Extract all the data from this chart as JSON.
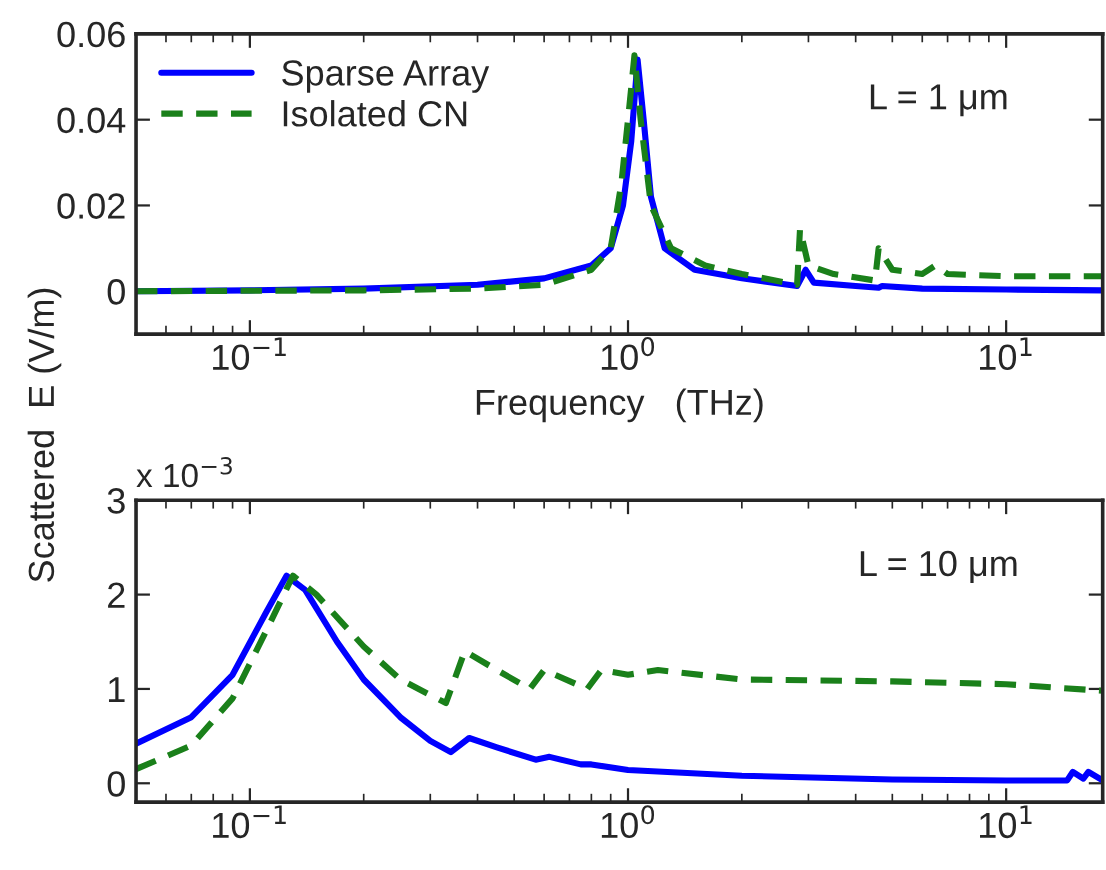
{
  "chart_data": [
    {
      "type": "line",
      "xlabel": "Frequency   (THz)",
      "ylabel": "Scattered  E (V/m)",
      "log": "x",
      "xlim": [
        0.05,
        18
      ],
      "ylim": [
        -0.01,
        0.06
      ],
      "yticks": [
        0,
        0.02,
        0.04,
        0.06
      ],
      "xticks": [
        {
          "value": 0.1,
          "label": "10$^{−1}$"
        },
        {
          "value": 1,
          "label": "10$^{0}$"
        },
        {
          "value": 10,
          "label": "10$^{1}$"
        }
      ],
      "legend": "top left",
      "grid": false,
      "annotations": [
        "L = 1 μm"
      ],
      "series": [
        {
          "name": "Sparse Array",
          "color": "#0000ff",
          "line_style": "solid",
          "x": [
            0.05,
            0.1,
            0.2,
            0.4,
            0.6,
            0.8,
            0.9,
            0.97,
            1.02,
            1.06,
            1.1,
            1.15,
            1.25,
            1.5,
            2,
            2.8,
            2.95,
            3.1,
            4,
            4.6,
            4.7,
            6,
            10,
            18
          ],
          "values": [
            0,
            0.0002,
            0.0006,
            0.0015,
            0.003,
            0.006,
            0.01,
            0.02,
            0.035,
            0.054,
            0.04,
            0.022,
            0.01,
            0.005,
            0.003,
            0.0012,
            0.005,
            0.002,
            0.0012,
            0.0008,
            0.0012,
            0.0006,
            0.0004,
            0.0002
          ]
        },
        {
          "name": "Isolated CN",
          "color": "#1a801a",
          "line_style": "dashed",
          "x": [
            0.05,
            0.2,
            0.4,
            0.6,
            0.8,
            0.9,
            0.96,
            1.0,
            1.04,
            1.08,
            1.15,
            1.3,
            1.6,
            2,
            2.8,
            2.85,
            3.0,
            3.5,
            4.5,
            4.6,
            5,
            6,
            6.5,
            7,
            10,
            18
          ],
          "values": [
            0,
            0.0002,
            0.0006,
            0.0015,
            0.005,
            0.01,
            0.025,
            0.04,
            0.055,
            0.04,
            0.02,
            0.01,
            0.006,
            0.004,
            0.0015,
            0.0145,
            0.006,
            0.004,
            0.0025,
            0.01,
            0.005,
            0.004,
            0.006,
            0.004,
            0.0035,
            0.0035
          ]
        }
      ]
    },
    {
      "type": "line",
      "log": "x",
      "xlim": [
        0.05,
        18
      ],
      "ylim": [
        -0.2,
        3
      ],
      "yticks": [
        0,
        1,
        2,
        3
      ],
      "xticks": [
        {
          "value": 0.1,
          "label": "10$^{−1}$"
        },
        {
          "value": 1,
          "label": "10$^{0}$"
        },
        {
          "value": 10,
          "label": "10$^{1}$"
        }
      ],
      "grid": false,
      "annotations": [
        "x 10$^{−3}$",
        "L = 10 μm"
      ],
      "series": [
        {
          "color": "#0000ff",
          "line_style": "solid",
          "x": [
            0.05,
            0.07,
            0.09,
            0.11,
            0.125,
            0.14,
            0.17,
            0.2,
            0.25,
            0.3,
            0.34,
            0.38,
            0.45,
            0.57,
            0.62,
            0.75,
            0.8,
            1.0,
            2,
            5,
            10,
            14.5,
            15,
            16,
            16.5,
            18
          ],
          "values": [
            0.42,
            0.7,
            1.15,
            1.8,
            2.2,
            2.05,
            1.5,
            1.1,
            0.7,
            0.45,
            0.33,
            0.48,
            0.38,
            0.25,
            0.28,
            0.2,
            0.2,
            0.14,
            0.08,
            0.04,
            0.03,
            0.03,
            0.12,
            0.05,
            0.12,
            0.03
          ]
        },
        {
          "color": "#1a801a",
          "line_style": "dashed",
          "x": [
            0.05,
            0.07,
            0.09,
            0.11,
            0.13,
            0.15,
            0.2,
            0.25,
            0.33,
            0.37,
            0.45,
            0.55,
            0.6,
            0.78,
            0.85,
            1.0,
            1.2,
            2,
            5,
            10,
            18
          ],
          "values": [
            0.15,
            0.4,
            0.9,
            1.6,
            2.2,
            2.0,
            1.45,
            1.1,
            0.85,
            1.4,
            1.2,
            1.0,
            1.2,
            1.0,
            1.2,
            1.15,
            1.2,
            1.1,
            1.08,
            1.05,
            0.98
          ]
        }
      ]
    }
  ]
}
